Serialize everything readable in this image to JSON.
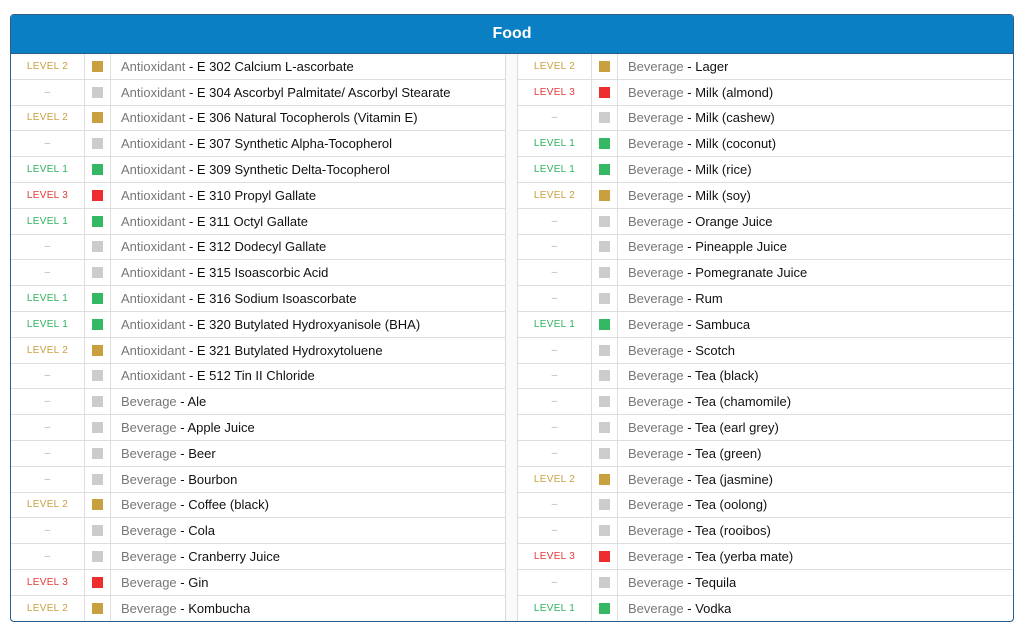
{
  "panel": {
    "title": "Food"
  },
  "colors": {
    "LEVEL 1": "#35b864",
    "LEVEL 2": "#c9a040",
    "LEVEL 3": "#ee2e2e",
    "–": "#cccccc"
  },
  "left_rows": [
    {
      "level": "LEVEL 2",
      "category": "Antioxidant",
      "item": "E 302 Calcium L-ascorbate"
    },
    {
      "level": "–",
      "category": "Antioxidant",
      "item": "E 304 Ascorbyl Palmitate/ Ascorbyl Stearate"
    },
    {
      "level": "LEVEL 2",
      "category": "Antioxidant",
      "item": "E 306 Natural Tocopherols (Vitamin E)"
    },
    {
      "level": "–",
      "category": "Antioxidant",
      "item": "E 307 Synthetic Alpha-Tocopherol"
    },
    {
      "level": "LEVEL 1",
      "category": "Antioxidant",
      "item": "E 309 Synthetic Delta-Tocopherol"
    },
    {
      "level": "LEVEL 3",
      "category": "Antioxidant",
      "item": "E 310 Propyl Gallate"
    },
    {
      "level": "LEVEL 1",
      "category": "Antioxidant",
      "item": "E 311 Octyl Gallate"
    },
    {
      "level": "–",
      "category": "Antioxidant",
      "item": "E 312 Dodecyl Gallate"
    },
    {
      "level": "–",
      "category": "Antioxidant",
      "item": "E 315 Isoascorbic Acid"
    },
    {
      "level": "LEVEL 1",
      "category": "Antioxidant",
      "item": "E 316 Sodium Isoascorbate"
    },
    {
      "level": "LEVEL 1",
      "category": "Antioxidant",
      "item": "E 320 Butylated Hydroxyanisole (BHA)"
    },
    {
      "level": "LEVEL 2",
      "category": "Antioxidant",
      "item": "E 321 Butylated Hydroxytoluene"
    },
    {
      "level": "–",
      "category": "Antioxidant",
      "item": "E 512 Tin II Chloride"
    },
    {
      "level": "–",
      "category": "Beverage",
      "item": "Ale"
    },
    {
      "level": "–",
      "category": "Beverage",
      "item": "Apple Juice"
    },
    {
      "level": "–",
      "category": "Beverage",
      "item": "Beer"
    },
    {
      "level": "–",
      "category": "Beverage",
      "item": "Bourbon"
    },
    {
      "level": "LEVEL 2",
      "category": "Beverage",
      "item": "Coffee (black)"
    },
    {
      "level": "–",
      "category": "Beverage",
      "item": "Cola"
    },
    {
      "level": "–",
      "category": "Beverage",
      "item": "Cranberry Juice"
    },
    {
      "level": "LEVEL 3",
      "category": "Beverage",
      "item": "Gin"
    },
    {
      "level": "LEVEL 2",
      "category": "Beverage",
      "item": "Kombucha"
    }
  ],
  "right_rows": [
    {
      "level": "LEVEL 2",
      "category": "Beverage",
      "item": "Lager"
    },
    {
      "level": "LEVEL 3",
      "category": "Beverage",
      "item": "Milk (almond)"
    },
    {
      "level": "–",
      "category": "Beverage",
      "item": "Milk (cashew)"
    },
    {
      "level": "LEVEL 1",
      "category": "Beverage",
      "item": "Milk (coconut)"
    },
    {
      "level": "LEVEL 1",
      "category": "Beverage",
      "item": "Milk (rice)"
    },
    {
      "level": "LEVEL 2",
      "category": "Beverage",
      "item": "Milk (soy)"
    },
    {
      "level": "–",
      "category": "Beverage",
      "item": "Orange Juice"
    },
    {
      "level": "–",
      "category": "Beverage",
      "item": "Pineapple Juice"
    },
    {
      "level": "–",
      "category": "Beverage",
      "item": "Pomegranate Juice"
    },
    {
      "level": "–",
      "category": "Beverage",
      "item": "Rum"
    },
    {
      "level": "LEVEL 1",
      "category": "Beverage",
      "item": "Sambuca"
    },
    {
      "level": "–",
      "category": "Beverage",
      "item": "Scotch"
    },
    {
      "level": "–",
      "category": "Beverage",
      "item": "Tea (black)"
    },
    {
      "level": "–",
      "category": "Beverage",
      "item": "Tea (chamomile)"
    },
    {
      "level": "–",
      "category": "Beverage",
      "item": "Tea (earl grey)"
    },
    {
      "level": "–",
      "category": "Beverage",
      "item": "Tea (green)"
    },
    {
      "level": "LEVEL 2",
      "category": "Beverage",
      "item": "Tea (jasmine)"
    },
    {
      "level": "–",
      "category": "Beverage",
      "item": "Tea (oolong)"
    },
    {
      "level": "–",
      "category": "Beverage",
      "item": "Tea (rooibos)"
    },
    {
      "level": "LEVEL 3",
      "category": "Beverage",
      "item": "Tea (yerba mate)"
    },
    {
      "level": "–",
      "category": "Beverage",
      "item": "Tequila"
    },
    {
      "level": "LEVEL 1",
      "category": "Beverage",
      "item": "Vodka"
    }
  ]
}
